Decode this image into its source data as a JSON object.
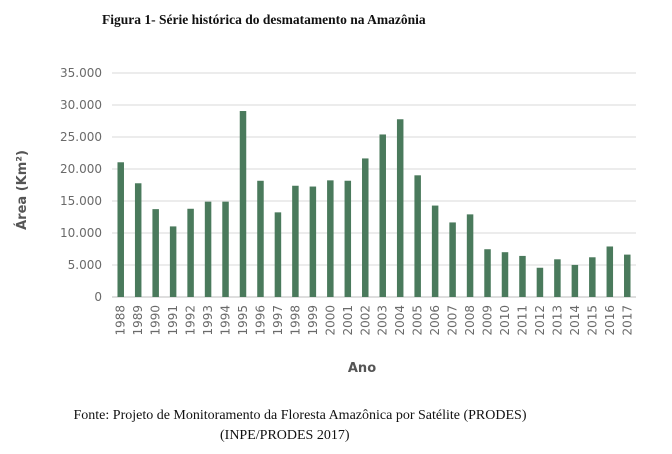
{
  "figure": {
    "title": "Figura 1- Série histórica do desmatamento  na Amazônia",
    "source_line1": "Fonte: Projeto de Monitoramento da Floresta Amazônica por Satélite (PRODES)",
    "source_line2": "(INPE/PRODES 2017)"
  },
  "chart_data": {
    "type": "bar",
    "xlabel": "Ano",
    "ylabel": "Área (Km²)",
    "ylim": [
      0,
      35000
    ],
    "yticks": [
      0,
      5000,
      10000,
      15000,
      20000,
      25000,
      30000,
      35000
    ],
    "ytick_labels": [
      "0",
      "5.000",
      "10.000",
      "15.000",
      "20.000",
      "25.000",
      "30.000",
      "35.000"
    ],
    "grid": true,
    "bar_color": "#4a7a5c",
    "categories": [
      "1988",
      "1989",
      "1990",
      "1991",
      "1992",
      "1993",
      "1994",
      "1995",
      "1996",
      "1997",
      "1998",
      "1999",
      "2000",
      "2001",
      "2002",
      "2003",
      "2004",
      "2005",
      "2006",
      "2007",
      "2008",
      "2009",
      "2010",
      "2011",
      "2012",
      "2013",
      "2014",
      "2015",
      "2016",
      "2017"
    ],
    "values": [
      21050,
      17770,
      13730,
      11030,
      13786,
      14896,
      14896,
      29059,
      18161,
      13227,
      17383,
      17259,
      18226,
      18165,
      21651,
      25396,
      27772,
      19014,
      14286,
      11651,
      12911,
      7464,
      7000,
      6418,
      4571,
      5891,
      5012,
      6207,
      7893,
      6624
    ]
  }
}
